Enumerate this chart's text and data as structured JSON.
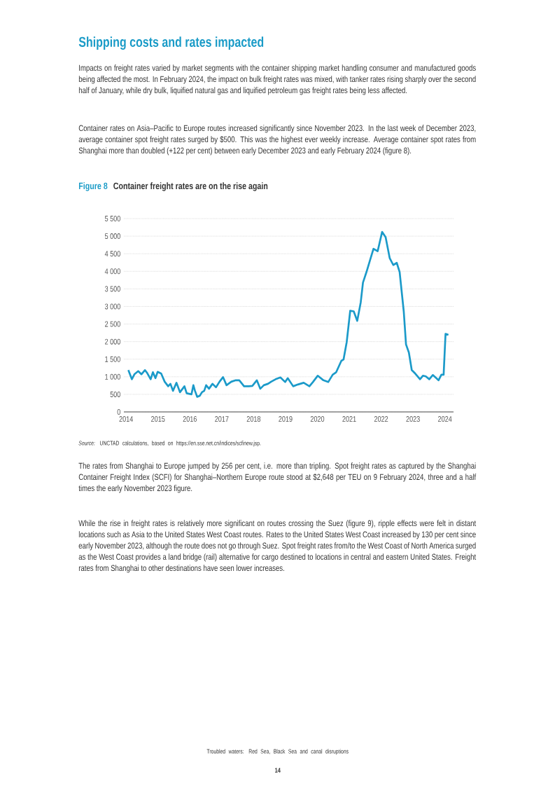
{
  "chart_data": {
    "type": "line",
    "title": "Container freight rates are on the rise again",
    "annotations": [
      "Shipping costs and rates impacted",
      "Impacts on freight rates varied by market segments with the container shipping market handling consumer and manufactured goods being affected the most. In February 2024, the impact on bulk freight rates was mixed, with tanker rates rising sharply over the second half of January, while dry bulk, liquified natural gas and liquified petroleum gas freight rates being less affected.",
      "Container rates on Asia–Pacific to Europe routes increased significantly since November 2023. In the last week of December 2023, average container spot freight rates surged by $500. This was the highest ever weekly increase. Average container spot rates from Shanghai more than doubled (+122 per cent) between early December 2023 and early February 2024 (figure 8).",
      "Figure 8",
      "*Source:*  UNCTAD calculations, based on https://en.sse.net.cn/indices/scfinew.jsp.",
      "The rates from Shanghai to Europe jumped by 256 per cent, i.e. more than tripling. Spot freight rates as captured by the Shanghai Container Freight Index (SCFI) for Shanghai–Northern Europe route stood at $2,648 per TEU on 9 February 2024, three and a half times the early November 2023 figure.",
      "While the rise in freight rates is relatively more significant on routes crossing the Suez (figure 9), ripple effects were felt in distant locations such as Asia to the United States West Coast routes. Rates to the United States West Coast increased by 130 per cent since early November 2023, although the route does not go through Suez. Spot freight rates from/to the West Coast of North America surged as the West Coast provides a land bridge (rail) alternative for cargo destined to locations in central and eastern United States. Freight rates from Shanghai to other destinations have seen lower increases.",
      "Troubled waters: Red Sea, Black Sea and canal disruptions",
      "14"
    ],
    "x": [
      2014.07,
      2014.18,
      2014.26,
      2014.38,
      2014.48,
      2014.59,
      2014.66,
      2014.77,
      2014.84,
      2014.92,
      2014.99,
      2015.1,
      2015.21,
      2015.32,
      2015.39,
      2015.47,
      2015.58,
      2015.69,
      2015.83,
      2015.9,
      2016.05,
      2016.11,
      2016.16,
      2016.23,
      2016.31,
      2016.38,
      2016.45,
      2016.51,
      2016.6,
      2016.71,
      2016.82,
      2016.93,
      2017.04,
      2017.15,
      2017.3,
      2017.44,
      2017.55,
      2017.7,
      2017.85,
      2017.96,
      2018.1,
      2018.21,
      2018.32,
      2018.45,
      2018.55,
      2018.69,
      2018.84,
      2018.99,
      2019.07,
      2019.24,
      2019.39,
      2019.57,
      2019.75,
      2019.86,
      2020.01,
      2020.19,
      2020.34,
      2020.48,
      2020.59,
      2020.75,
      2020.82,
      2020.92,
      2021.03,
      2021.14,
      2021.25,
      2021.36,
      2021.43,
      2021.54,
      2021.65,
      2021.76,
      2021.89,
      2022.03,
      2022.14,
      2022.27,
      2022.38,
      2022.49,
      2022.58,
      2022.71,
      2022.78,
      2022.87,
      2022.96,
      2023.07,
      2023.22,
      2023.31,
      2023.4,
      2023.51,
      2023.62,
      2023.73,
      2023.8,
      2023.89,
      2023.96,
      2024.02,
      2024.11
    ],
    "values": [
      1190,
      930,
      1070,
      1160,
      1070,
      1190,
      1110,
      930,
      1130,
      960,
      1140,
      1090,
      860,
      730,
      800,
      600,
      830,
      560,
      730,
      530,
      500,
      760,
      600,
      430,
      460,
      560,
      600,
      760,
      660,
      800,
      700,
      860,
      990,
      760,
      860,
      900,
      900,
      730,
      730,
      740,
      900,
      660,
      760,
      800,
      860,
      930,
      980,
      850,
      960,
      730,
      780,
      830,
      730,
      850,
      1030,
      900,
      850,
      1060,
      1130,
      1450,
      1490,
      1990,
      2880,
      2860,
      2590,
      3120,
      3680,
      3980,
      4310,
      4640,
      4570,
      5120,
      4970,
      4370,
      4180,
      4240,
      3980,
      2850,
      1920,
      1690,
      1190,
      1090,
      930,
      1030,
      1010,
      930,
      1050,
      960,
      900,
      1060,
      1060,
      2220,
      2190
    ],
    "color": "#1b9ac9",
    "xlim": [
      2013.93,
      2024.27
    ],
    "ylim": [
      0,
      5500
    ],
    "xticks": [
      2014,
      2015,
      2016,
      2017,
      2018,
      2019,
      2020,
      2021,
      2022,
      2023,
      2024
    ],
    "yticks": [
      0,
      500,
      {
        "value": 1000,
        "label": "1 000"
      },
      {
        "value": 1500,
        "label": "1 500"
      },
      {
        "value": 2000,
        "label": "2 000"
      },
      {
        "value": 2500,
        "label": "2 500"
      },
      {
        "value": 3000,
        "label": "3 000"
      },
      {
        "value": 3500,
        "label": "3 500"
      },
      {
        "value": 4000,
        "label": "4 000"
      },
      {
        "value": 4500,
        "label": "4 500"
      },
      {
        "value": 5000,
        "label": "5 000"
      },
      {
        "value": 5500,
        "label": "5 500"
      }
    ],
    "grid": "y"
  }
}
